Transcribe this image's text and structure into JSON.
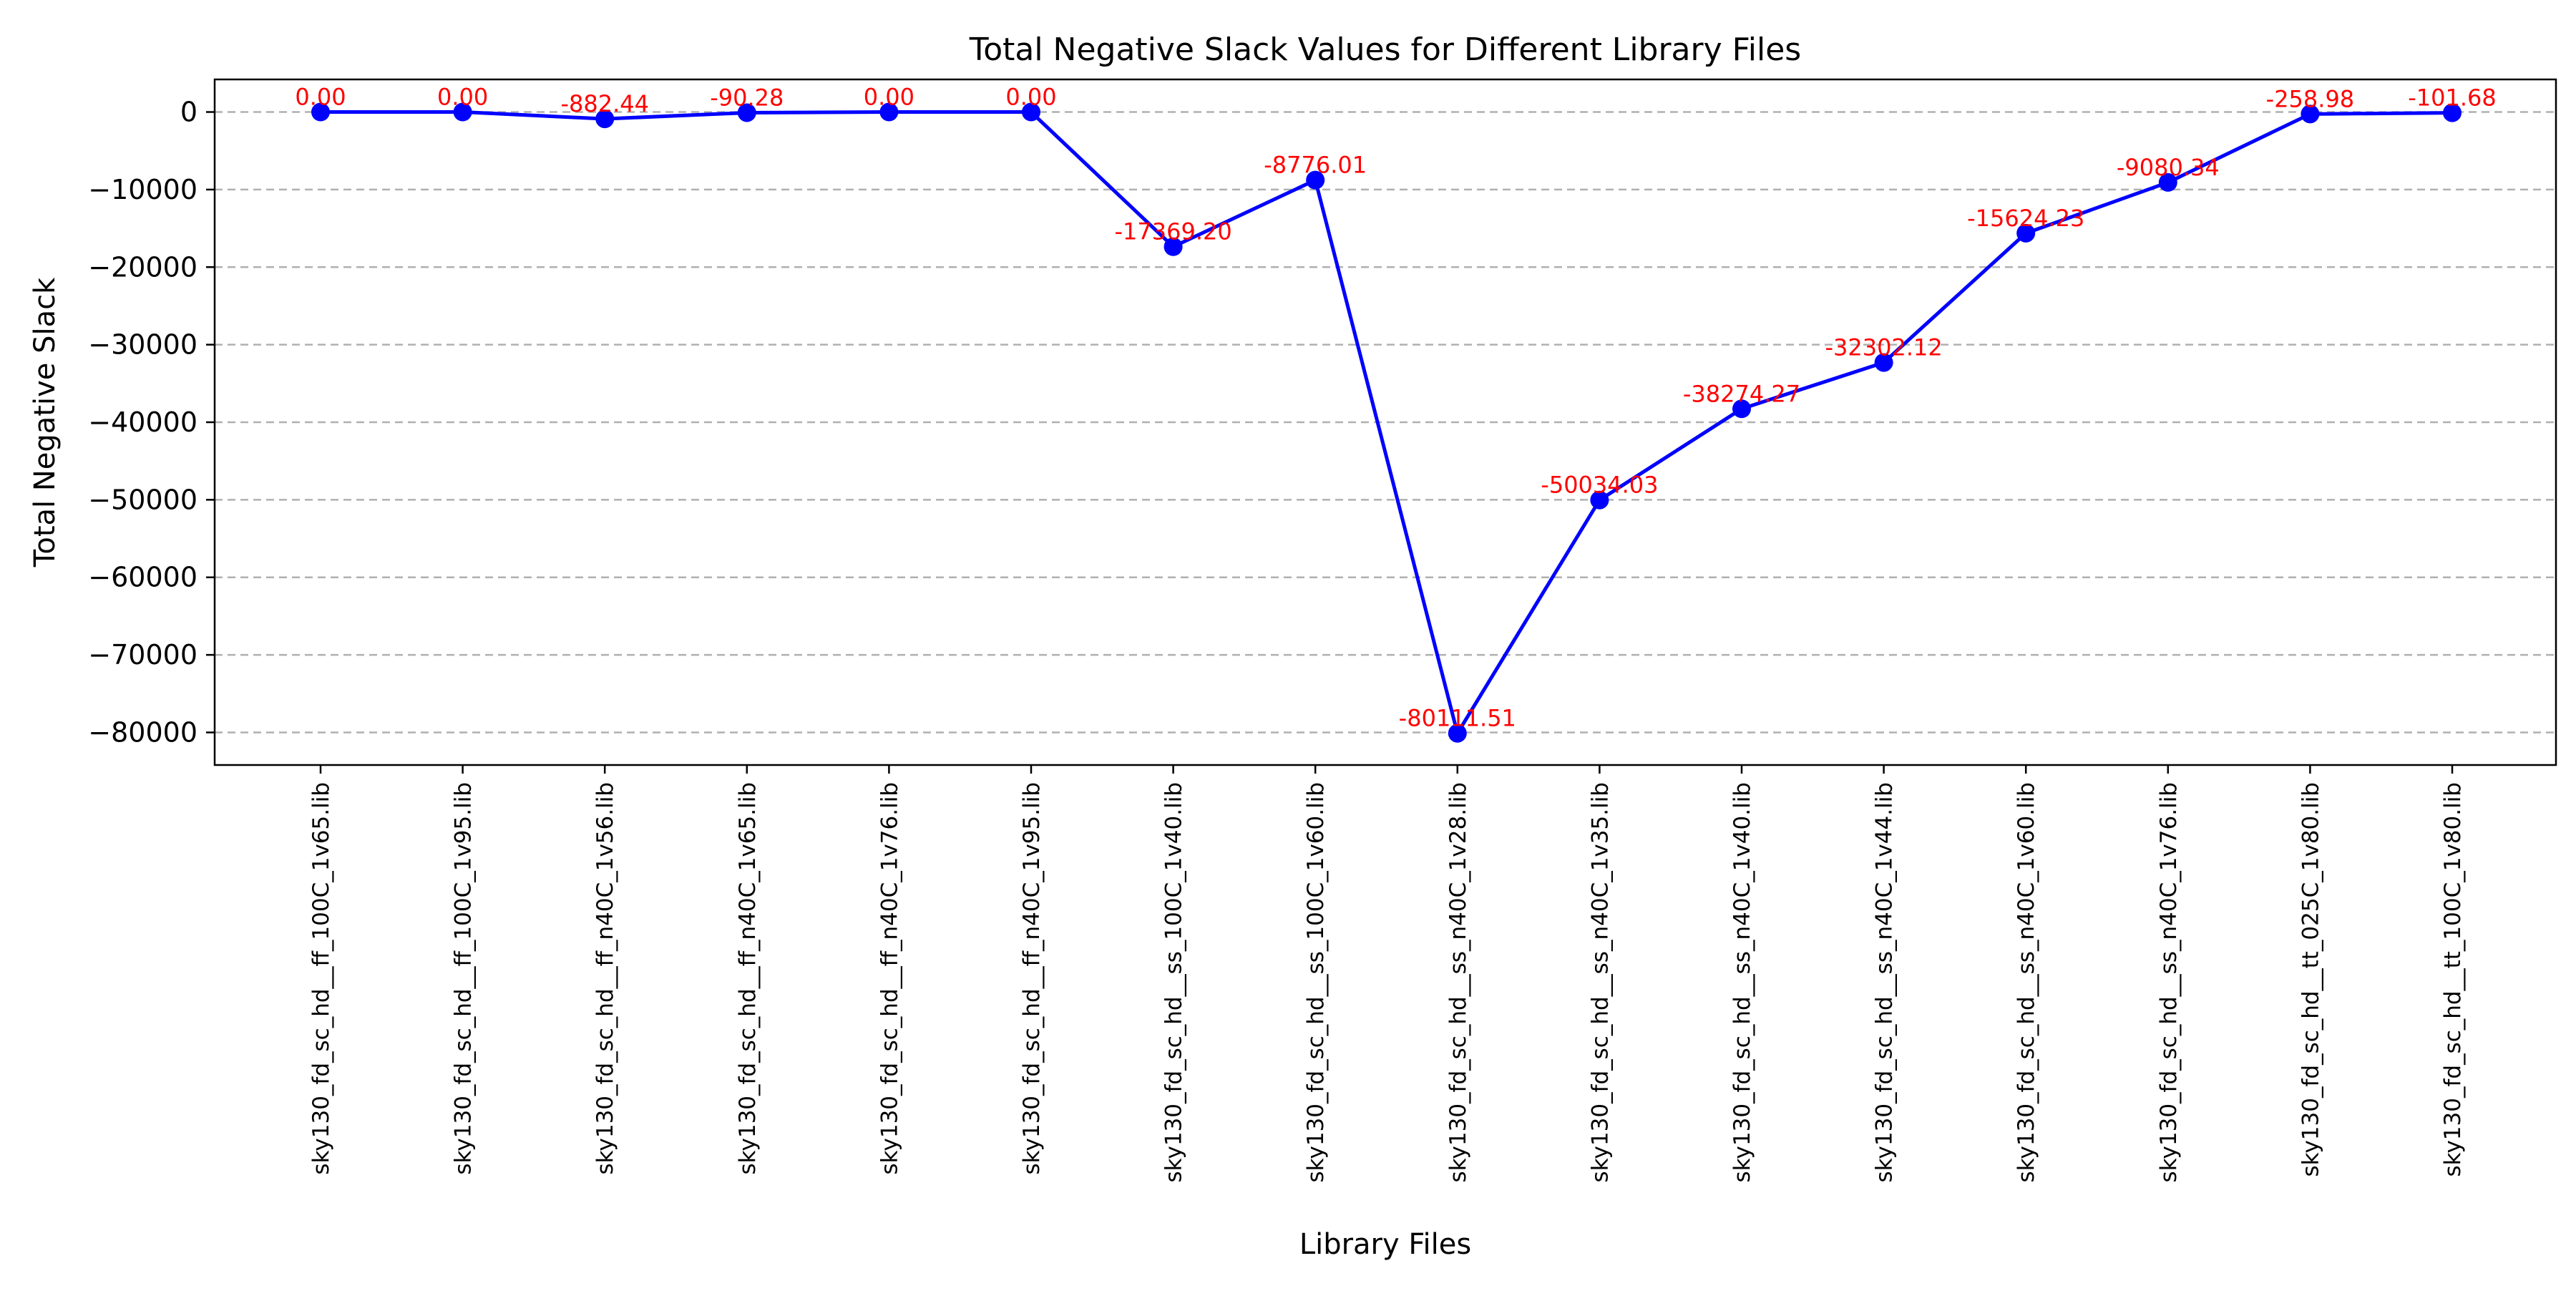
{
  "chart_data": {
    "type": "line",
    "title": "Total Negative Slack Values for Different Library Files",
    "xlabel": "Library Files",
    "ylabel": "Total Negative Slack",
    "categories": [
      "sky130_fd_sc_hd__ff_100C_1v65.lib",
      "sky130_fd_sc_hd__ff_100C_1v95.lib",
      "sky130_fd_sc_hd__ff_n40C_1v56.lib",
      "sky130_fd_sc_hd__ff_n40C_1v65.lib",
      "sky130_fd_sc_hd__ff_n40C_1v76.lib",
      "sky130_fd_sc_hd__ff_n40C_1v95.lib",
      "sky130_fd_sc_hd__ss_100C_1v40.lib",
      "sky130_fd_sc_hd__ss_100C_1v60.lib",
      "sky130_fd_sc_hd__ss_n40C_1v28.lib",
      "sky130_fd_sc_hd__ss_n40C_1v35.lib",
      "sky130_fd_sc_hd__ss_n40C_1v40.lib",
      "sky130_fd_sc_hd__ss_n40C_1v44.lib",
      "sky130_fd_sc_hd__ss_n40C_1v60.lib",
      "sky130_fd_sc_hd__ss_n40C_1v76.lib",
      "sky130_fd_sc_hd__tt_025C_1v80.lib",
      "sky130_fd_sc_hd__tt_100C_1v80.lib"
    ],
    "values": [
      0.0,
      0.0,
      -882.44,
      -90.28,
      0.0,
      0.0,
      -17369.2,
      -8776.01,
      -80111.51,
      -50034.03,
      -38274.27,
      -32302.12,
      -15624.23,
      -9080.34,
      -258.98,
      -101.68
    ],
    "data_labels": [
      "0.00",
      "0.00",
      "-882.44",
      "-90.28",
      "0.00",
      "0.00",
      "-17369.20",
      "-8776.01",
      "-80111.51",
      "-50034.03",
      "-38274.27",
      "-32302.12",
      "-15624.23",
      "-9080.34",
      "-258.98",
      "-101.68"
    ],
    "yticks": [
      0,
      -10000,
      -20000,
      -30000,
      -40000,
      -50000,
      -60000,
      -70000,
      -80000
    ],
    "ytick_labels": [
      "0",
      "−10000",
      "−20000",
      "−30000",
      "−40000",
      "−50000",
      "−60000",
      "−70000",
      "−80000"
    ],
    "ylim": [
      -84200,
      4200
    ],
    "grid": "horizontal dashed",
    "colors": {
      "line": "#0000ff",
      "marker": "#0000ff",
      "data_label": "#ff0000",
      "grid": "#b0b0b0"
    }
  }
}
